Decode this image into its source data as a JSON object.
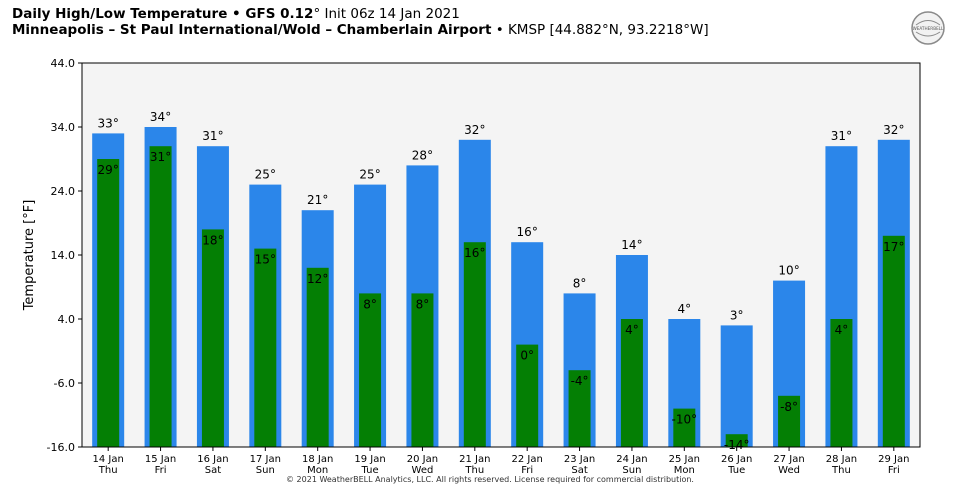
{
  "header": {
    "title_main": "Daily High/Low Temperature",
    "title_sep": " • ",
    "model": "GFS 0.12",
    "model_unit": "°",
    "init": " Init 06z 14 Jan 2021",
    "location": "Minneapolis – St Paul International/Wold – Chamberlain Airport",
    "station": "KMSP [44.882°N, 93.2218°W]"
  },
  "logo_text": "WEATHERBELL",
  "copyright": "© 2021 WeatherBELL Analytics, LLC. All rights reserved. License required for commercial distribution.",
  "colors": {
    "high": "#2b86ea",
    "low": "#047f04",
    "plot_bg": "#f4f4f4"
  },
  "chart_data": {
    "type": "bar",
    "ylabel": "Temperature [°F]",
    "ylim": [
      -16.0,
      44.0
    ],
    "yticks": [
      "44.0",
      "34.0",
      "24.0",
      "14.0",
      "4.0",
      "-6.0",
      "-16.0"
    ],
    "grid": false,
    "categories": [
      [
        "14 Jan",
        "Thu"
      ],
      [
        "15 Jan",
        "Fri"
      ],
      [
        "16 Jan",
        "Sat"
      ],
      [
        "17 Jan",
        "Sun"
      ],
      [
        "18 Jan",
        "Mon"
      ],
      [
        "19 Jan",
        "Tue"
      ],
      [
        "20 Jan",
        "Wed"
      ],
      [
        "21 Jan",
        "Thu"
      ],
      [
        "22 Jan",
        "Fri"
      ],
      [
        "23 Jan",
        "Sat"
      ],
      [
        "24 Jan",
        "Sun"
      ],
      [
        "25 Jan",
        "Mon"
      ],
      [
        "26 Jan",
        "Tue"
      ],
      [
        "27 Jan",
        "Wed"
      ],
      [
        "28 Jan",
        "Thu"
      ],
      [
        "29 Jan",
        "Fri"
      ]
    ],
    "series": [
      {
        "values": [
          33,
          34,
          31,
          25,
          21,
          25,
          28,
          32,
          16,
          8,
          14,
          4,
          3,
          10,
          31,
          32
        ],
        "labels": [
          "33°",
          "34°",
          "31°",
          "25°",
          "21°",
          "25°",
          "28°",
          "32°",
          "16°",
          "8°",
          "14°",
          "4°",
          "3°",
          "10°",
          "31°",
          "32°"
        ]
      },
      {
        "values": [
          29,
          31,
          18,
          15,
          12,
          8,
          8,
          16,
          0,
          -4,
          4,
          -10,
          -14,
          -8,
          4,
          17
        ],
        "labels": [
          "29°",
          "31°",
          "18°",
          "15°",
          "12°",
          "8°",
          "8°",
          "16°",
          "0°",
          "-4°",
          "4°",
          "-10°",
          "-14°",
          "-8°",
          "4°",
          "17°"
        ]
      }
    ]
  }
}
